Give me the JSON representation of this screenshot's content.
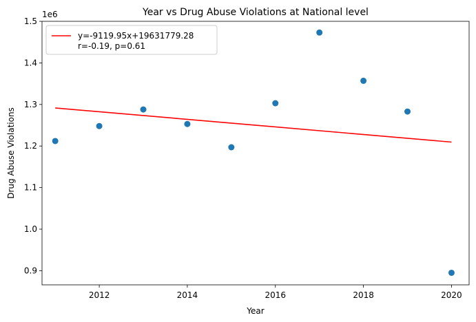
{
  "chart_data": {
    "type": "scatter",
    "title": "Year vs Drug Abuse Violations at National level",
    "xlabel": "Year",
    "ylabel": "Drug Abuse Violations",
    "y_offset_label": "1e6",
    "xlim": [
      2010.7,
      2020.4
    ],
    "ylim": [
      866000,
      1500000
    ],
    "x_ticks": [
      2012,
      2014,
      2016,
      2018,
      2020
    ],
    "x_tick_labels": [
      "2012",
      "2014",
      "2016",
      "2018",
      "2020"
    ],
    "y_ticks": [
      900000,
      1000000,
      1100000,
      1200000,
      1300000,
      1400000,
      1500000
    ],
    "y_tick_labels": [
      "0.9",
      "1.0",
      "1.1",
      "1.2",
      "1.3",
      "1.4",
      "1.5"
    ],
    "grid": false,
    "series": [
      {
        "kind": "scatter",
        "color": "#1f77b4",
        "x": [
          2011,
          2012,
          2013,
          2014,
          2015,
          2016,
          2017,
          2018,
          2019,
          2020
        ],
        "y": [
          1212000,
          1248000,
          1288000,
          1253000,
          1197000,
          1303000,
          1473000,
          1357000,
          1283000,
          895000
        ]
      },
      {
        "kind": "line",
        "name": "y=-9119.95x+19631779.28\nr=-0.19, p=0.61",
        "color": "#ff0000",
        "slope": -9119.95,
        "intercept": 19631779.28,
        "x_range": [
          2011,
          2020
        ]
      }
    ],
    "legend": {
      "position": "upper-left",
      "lines": [
        "y=-9119.95x+19631779.28",
        "r=-0.19, p=0.61"
      ]
    }
  }
}
